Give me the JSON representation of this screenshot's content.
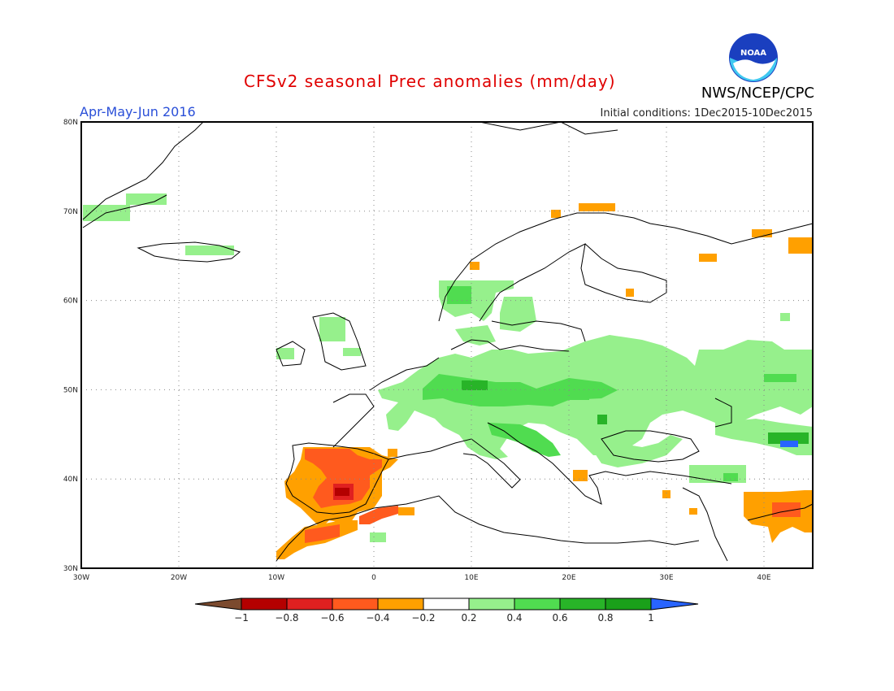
{
  "header": {
    "title": "CFSv2 seasonal Prec anomalies (mm/day)",
    "season": "Apr-May-Jun 2016",
    "initial_conditions": "Initial conditions: 1Dec2015-10Dec2015",
    "agency": "NWS/NCEP/CPC",
    "logo_text": "NOAA"
  },
  "map": {
    "lon_range": [
      -30,
      45
    ],
    "lat_range": [
      30,
      80
    ],
    "lon_ticks": [
      "30W",
      "20W",
      "10W",
      "0",
      "10E",
      "20E",
      "30E",
      "40E"
    ],
    "lat_ticks": [
      "30N",
      "40N",
      "50N",
      "60N",
      "70N",
      "80N"
    ],
    "grid": "dotted",
    "coastlines": "black outline"
  },
  "colorbar": {
    "labels": [
      "-1",
      "-0.8",
      "-0.6",
      "-0.4",
      "-0.2",
      "0.2",
      "0.4",
      "0.6",
      "0.8",
      "1"
    ],
    "colors": [
      "#7b4a2e",
      "#b40000",
      "#e02020",
      "#ff5a1e",
      "#ffa000",
      "#ffffff",
      "#96f08c",
      "#50dc50",
      "#28b428",
      "#1aa01a",
      "#2864ff"
    ]
  },
  "anomaly_regions": [
    {
      "name": "Iberia",
      "level": "-0.4 to -0.8",
      "color": "#ffa000"
    },
    {
      "name": "Central Europe",
      "level": "0.2 to 0.6",
      "color": "#96f08c"
    },
    {
      "name": "Eastern Europe",
      "level": "0.2 to 0.6",
      "color": "#96f08c"
    },
    {
      "name": "Turkey/Middle East",
      "level": "-0.2 to -0.6",
      "color": "#ffa000"
    }
  ]
}
